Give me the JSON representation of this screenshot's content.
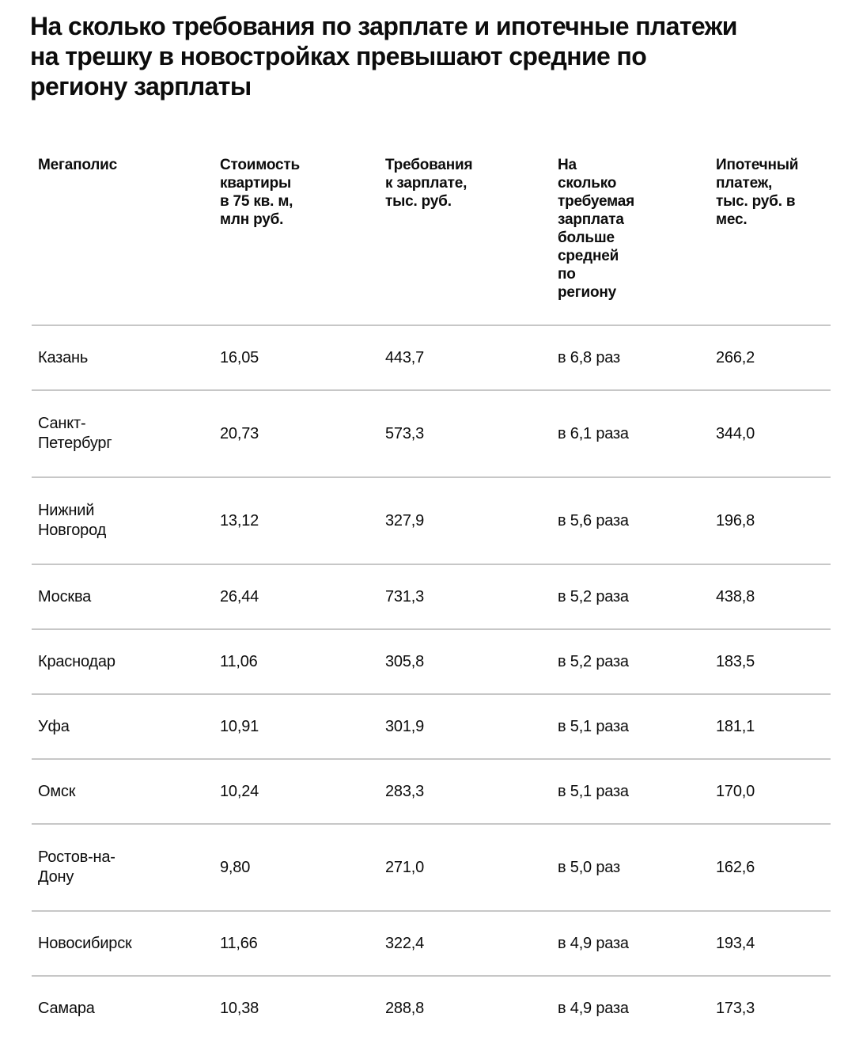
{
  "title": {
    "full": "На сколько требования по зарплате и ипотечные платежи на трешку в новостройках превышают средние по региону зарплаты",
    "lines": [
      "На сколько требования по зарплате и ипотечные платежи",
      "на трешку в новостройках превышают средние по",
      "региону зарплаты"
    ]
  },
  "table": {
    "header": [
      {
        "label": "Мегаполис",
        "lines": [
          "Мегаполис"
        ]
      },
      {
        "label": "Стоимость квартиры в 75 кв. м, млн руб.",
        "lines": [
          "Стоимость",
          "квартиры",
          "в 75 кв. м,",
          "млн руб."
        ]
      },
      {
        "label": "Требования к зарплате, тыс. руб.",
        "lines": [
          "Требования",
          "к зарплате,",
          "тыс. руб."
        ]
      },
      {
        "label": "На сколько требуемая зарплата больше средней по региону",
        "lines": [
          "На",
          "сколько",
          "требуемая",
          "зарплата",
          "больше",
          "средней",
          "по",
          "региону"
        ]
      },
      {
        "label": "Ипотечный платеж, тыс. руб. в мес.",
        "lines": [
          "Ипотечный",
          "платеж,",
          "тыс. руб. в",
          "мес."
        ]
      }
    ],
    "rows": [
      {
        "city": "Казань",
        "price": "16,05",
        "salary": "443,7",
        "ratio": "в 6,8 раз",
        "mortgage": "266,2"
      },
      {
        "city": "Санкт-Петербург",
        "price": "20,73",
        "salary": "573,3",
        "ratio": "в 6,1 раза",
        "mortgage": "344,0"
      },
      {
        "city": "Нижний Новгород",
        "price": "13,12",
        "salary": "327,9",
        "ratio": "в 5,6 раза",
        "mortgage": "196,8"
      },
      {
        "city": "Москва",
        "price": "26,44",
        "salary": "731,3",
        "ratio": "в 5,2 раза",
        "mortgage": "438,8"
      },
      {
        "city": "Краснодар",
        "price": "11,06",
        "salary": "305,8",
        "ratio": "в 5,2 раза",
        "mortgage": "183,5"
      },
      {
        "city": "Уфа",
        "price": "10,91",
        "salary": "301,9",
        "ratio": "в 5,1 раза",
        "mortgage": "181,1"
      },
      {
        "city": "Омск",
        "price": "10,24",
        "salary": "283,3",
        "ratio": "в 5,1 раза",
        "mortgage": "170,0"
      },
      {
        "city": "Ростов-на-Дону",
        "price": "9,80",
        "salary": "271,0",
        "ratio": "в 5,0 раз",
        "mortgage": "162,6"
      },
      {
        "city": "Новосибирск",
        "price": "11,66",
        "salary": "322,4",
        "ratio": "в 4,9 раза",
        "mortgage": "193,4"
      },
      {
        "city": "Самара",
        "price": "10,38",
        "salary": "288,8",
        "ratio": "в 4,9 раза",
        "mortgage": "173,3"
      }
    ]
  },
  "colors": {
    "background": "#ffffff",
    "text": "#0c0c0c",
    "divider": "#c7c7c7"
  },
  "chart_data": {
    "type": "table",
    "title": "На сколько требования по зарплате и ипотечные платежи на трешку в новостройках превышают средние по региону зарплаты",
    "columns": [
      "Мегаполис",
      "Стоимость квартиры в 75 кв. м, млн руб.",
      "Требования к зарплате, тыс. руб.",
      "На сколько требуемая зарплата больше средней по региону",
      "Ипотечный платеж, тыс. руб. в мес."
    ],
    "rows": [
      [
        "Казань",
        16.05,
        443.7,
        "в 6,8 раз",
        266.2
      ],
      [
        "Санкт-Петербург",
        20.73,
        573.3,
        "в 6,1 раза",
        344.0
      ],
      [
        "Нижний Новгород",
        13.12,
        327.9,
        "в 5,6 раза",
        196.8
      ],
      [
        "Москва",
        26.44,
        731.3,
        "в 5,2 раза",
        438.8
      ],
      [
        "Краснодар",
        11.06,
        305.8,
        "в 5,2 раза",
        183.5
      ],
      [
        "Уфа",
        10.91,
        301.9,
        "в 5,1 раза",
        181.1
      ],
      [
        "Омск",
        10.24,
        283.3,
        "в 5,1 раза",
        170.0
      ],
      [
        "Ростов-на-Дону",
        9.8,
        271.0,
        "в 5,0 раз",
        162.6
      ],
      [
        "Новосибирск",
        11.66,
        322.4,
        "в 4,9 раза",
        193.4
      ],
      [
        "Самара",
        10.38,
        288.8,
        "в 4,9 раза",
        173.3
      ]
    ]
  }
}
